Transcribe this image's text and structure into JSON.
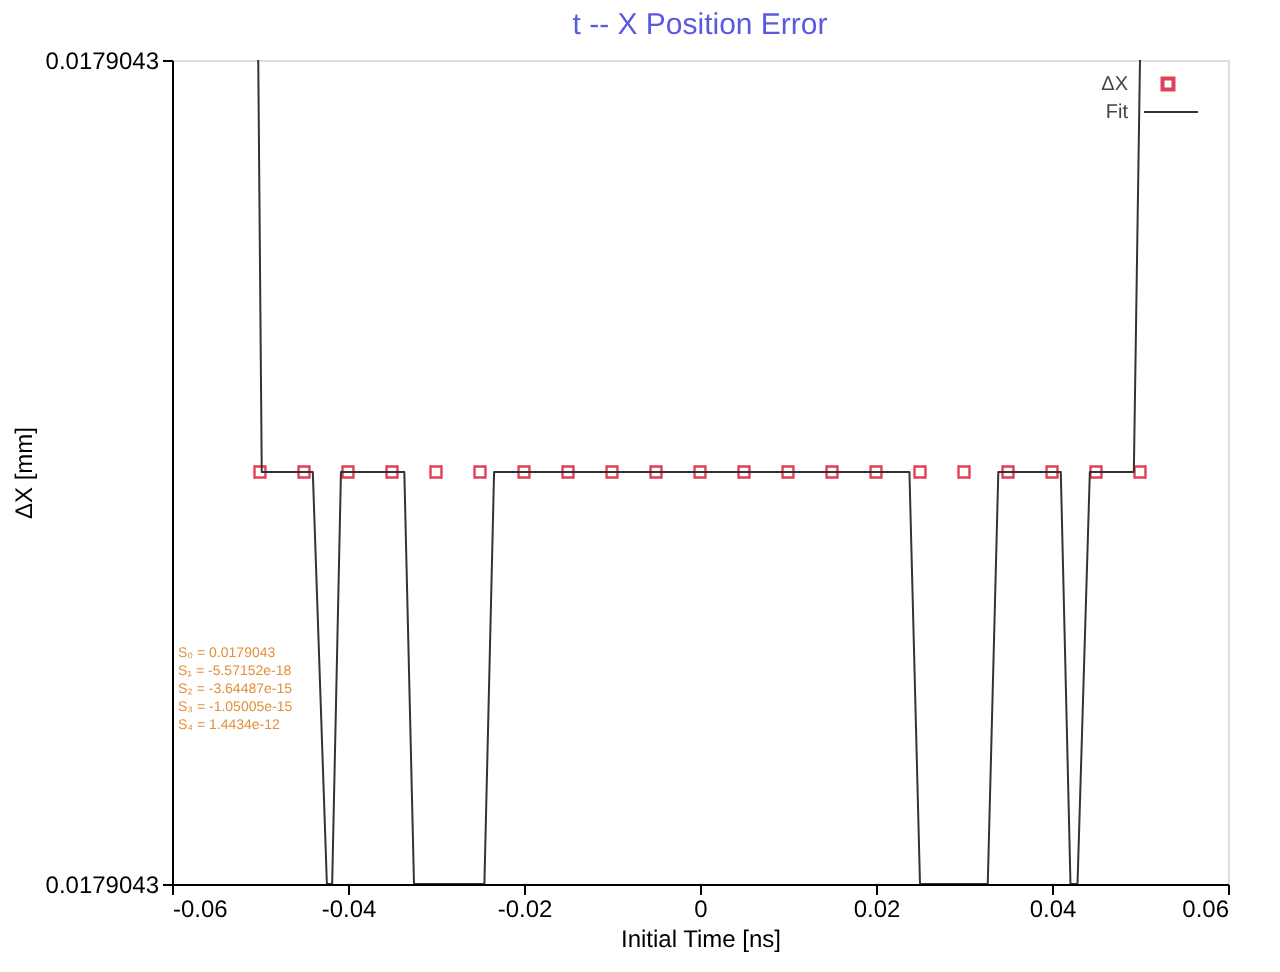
{
  "chart_data": {
    "type": "scatter",
    "title": "t -- X Position Error",
    "xlabel": "Initial Time [ns]",
    "ylabel": "ΔX [mm]",
    "x": [
      -0.05,
      -0.045,
      -0.04,
      -0.035,
      -0.03,
      -0.025,
      -0.02,
      -0.015,
      -0.01,
      -0.005,
      0,
      0.005,
      0.01,
      0.015,
      0.02,
      0.025,
      0.03,
      0.035,
      0.04,
      0.045,
      0.05
    ],
    "series": [
      {
        "name": "ΔX",
        "marker": "square",
        "color": "#e0405a",
        "values": [
          0.0179043,
          0.0179043,
          0.0179043,
          0.0179043,
          0.0179043,
          0.0179043,
          0.0179043,
          0.0179043,
          0.0179043,
          0.0179043,
          0.0179043,
          0.0179043,
          0.0179043,
          0.0179043,
          0.0179043,
          0.0179043,
          0.0179043,
          0.0179043,
          0.0179043,
          0.0179043,
          0.0179043
        ]
      },
      {
        "name": "Fit",
        "type": "line",
        "line_style": "solid",
        "color": "#333333",
        "x": [
          -0.0502,
          -0.0498,
          -0.044,
          -0.0424,
          -0.0418,
          -0.0408,
          -0.0336,
          -0.0325,
          -0.0245,
          -0.0234,
          0.0238,
          0.025,
          0.0327,
          0.0339,
          0.041,
          0.0421,
          0.0429,
          0.0443,
          0.0493,
          0.05
        ],
        "values": [
          0.01790435,
          0.0179043,
          0.0179043,
          0.01790425,
          0.01790425,
          0.0179043,
          0.0179043,
          0.01790425,
          0.01790425,
          0.0179043,
          0.0179043,
          0.01790425,
          0.01790425,
          0.0179043,
          0.0179043,
          0.01790425,
          0.01790425,
          0.0179043,
          0.0179043,
          0.01790435
        ]
      }
    ],
    "xlim": [
      -0.06,
      0.06
    ],
    "xticks": [
      -0.06,
      -0.04,
      -0.02,
      0,
      0.02,
      0.04,
      0.06
    ],
    "ylim": [
      0.01790425,
      0.01790435
    ],
    "yticks": [
      {
        "value": 0.01790425,
        "label": "0.0179043"
      },
      {
        "value": 0.01790435,
        "label": "0.0179043"
      }
    ],
    "annotations": [
      "S₀ = 0.0179043",
      "S₁ = -5.57152e-18",
      "S₂ = -3.64487e-15",
      "S₃ = -1.05005e-15",
      "S₄ = 1.4434e-12"
    ],
    "grid": false,
    "legend": "top right"
  }
}
